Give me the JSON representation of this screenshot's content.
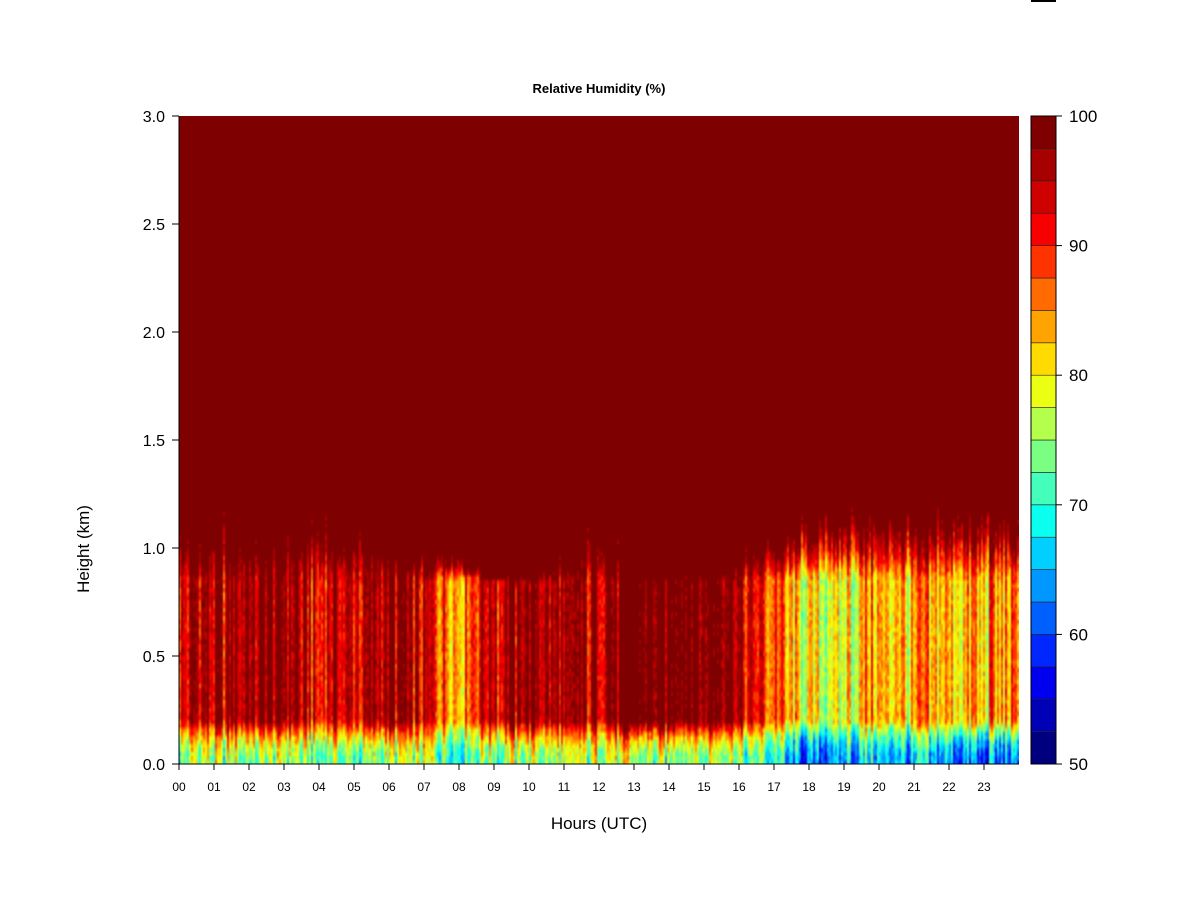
{
  "chart_data": {
    "type": "heatmap",
    "title": "Relative Humidity (%)",
    "xlabel": "Hours (UTC)",
    "ylabel": "Height (km)",
    "xlim": [
      0,
      24
    ],
    "ylim": [
      0,
      3.0
    ],
    "x_ticks": [
      0,
      1,
      2,
      3,
      4,
      5,
      6,
      7,
      8,
      9,
      10,
      11,
      12,
      13,
      14,
      15,
      16,
      17,
      18,
      19,
      20,
      21,
      22,
      23
    ],
    "x_tick_labels": [
      "00",
      "01",
      "02",
      "03",
      "04",
      "05",
      "06",
      "07",
      "08",
      "09",
      "10",
      "11",
      "12",
      "13",
      "14",
      "15",
      "16",
      "17",
      "18",
      "19",
      "20",
      "21",
      "22",
      "23"
    ],
    "y_ticks": [
      0.0,
      0.5,
      1.0,
      1.5,
      2.0,
      2.5,
      3.0
    ],
    "y_tick_labels": [
      "0.0",
      "0.5",
      "1.0",
      "1.5",
      "2.0",
      "2.5",
      "3.0"
    ],
    "colorbar": {
      "min": 50,
      "max": 100,
      "step": 2,
      "tick_values": [
        50,
        60,
        70,
        80,
        90,
        100
      ],
      "tick_labels": [
        "50",
        "60",
        "70",
        "80",
        "90",
        "100"
      ],
      "colors": [
        "#00007f",
        "#0000b7",
        "#0000ef",
        "#0027ff",
        "#005fff",
        "#0097ff",
        "#00cfff",
        "#0bffef",
        "#43ffbb",
        "#7bff83",
        "#b3ff4b",
        "#ebff13",
        "#ffdb00",
        "#ffa300",
        "#ff6b00",
        "#ff3300",
        "#f70000",
        "#cf0000",
        "#a70000",
        "#7f0000"
      ]
    },
    "surface_rh_by_hour": [
      {
        "hour": 0,
        "rh": 70
      },
      {
        "hour": 1,
        "rh": 70
      },
      {
        "hour": 2,
        "rh": 69
      },
      {
        "hour": 3,
        "rh": 69
      },
      {
        "hour": 4,
        "rh": 68
      },
      {
        "hour": 5,
        "rh": 69
      },
      {
        "hour": 6,
        "rh": 70
      },
      {
        "hour": 7,
        "rh": 71
      },
      {
        "hour": 8,
        "rh": 69
      },
      {
        "hour": 9,
        "rh": 69
      },
      {
        "hour": 10,
        "rh": 70
      },
      {
        "hour": 11,
        "rh": 70
      },
      {
        "hour": 12,
        "rh": 71
      },
      {
        "hour": 13,
        "rh": 71
      },
      {
        "hour": 14,
        "rh": 70
      },
      {
        "hour": 15,
        "rh": 70
      },
      {
        "hour": 16,
        "rh": 69
      },
      {
        "hour": 17,
        "rh": 66
      },
      {
        "hour": 18,
        "rh": 57
      },
      {
        "hour": 19,
        "rh": 63
      },
      {
        "hour": 20,
        "rh": 62
      },
      {
        "hour": 21,
        "rh": 62
      },
      {
        "hour": 22,
        "rh": 60
      },
      {
        "hour": 23,
        "rh": 59
      }
    ],
    "boundary_layer_rh_0_2_to_0_8_km": [
      {
        "hour": 0,
        "rh": 86
      },
      {
        "hour": 1,
        "rh": 86
      },
      {
        "hour": 2,
        "rh": 88
      },
      {
        "hour": 3,
        "rh": 87
      },
      {
        "hour": 4,
        "rh": 84
      },
      {
        "hour": 5,
        "rh": 86
      },
      {
        "hour": 6,
        "rh": 88
      },
      {
        "hour": 7,
        "rh": 84
      },
      {
        "hour": 8,
        "rh": 80
      },
      {
        "hour": 9,
        "rh": 86
      },
      {
        "hour": 10,
        "rh": 89
      },
      {
        "hour": 11,
        "rh": 86
      },
      {
        "hour": 12,
        "rh": 86
      },
      {
        "hour": 13,
        "rh": 93
      },
      {
        "hour": 14,
        "rh": 92
      },
      {
        "hour": 15,
        "rh": 90
      },
      {
        "hour": 16,
        "rh": 87
      },
      {
        "hour": 17,
        "rh": 80
      },
      {
        "hour": 18,
        "rh": 72
      },
      {
        "hour": 19,
        "rh": 74
      },
      {
        "hour": 20,
        "rh": 76
      },
      {
        "hour": 21,
        "rh": 76
      },
      {
        "hour": 22,
        "rh": 75
      },
      {
        "hour": 23,
        "rh": 77
      }
    ],
    "saturated_layer_top_km": 3.0,
    "moist_layer_base_km_by_hour": [
      {
        "hour": 0,
        "km": 1.2
      },
      {
        "hour": 4,
        "km": 1.25
      },
      {
        "hour": 9,
        "km": 0.85
      },
      {
        "hour": 10,
        "km": 0.85
      },
      {
        "hour": 12,
        "km": 1.2
      },
      {
        "hour": 14,
        "km": 0.85
      },
      {
        "hour": 17,
        "km": 1.15
      },
      {
        "hour": 20,
        "km": 1.25
      },
      {
        "hour": 23,
        "km": 1.25
      }
    ]
  }
}
